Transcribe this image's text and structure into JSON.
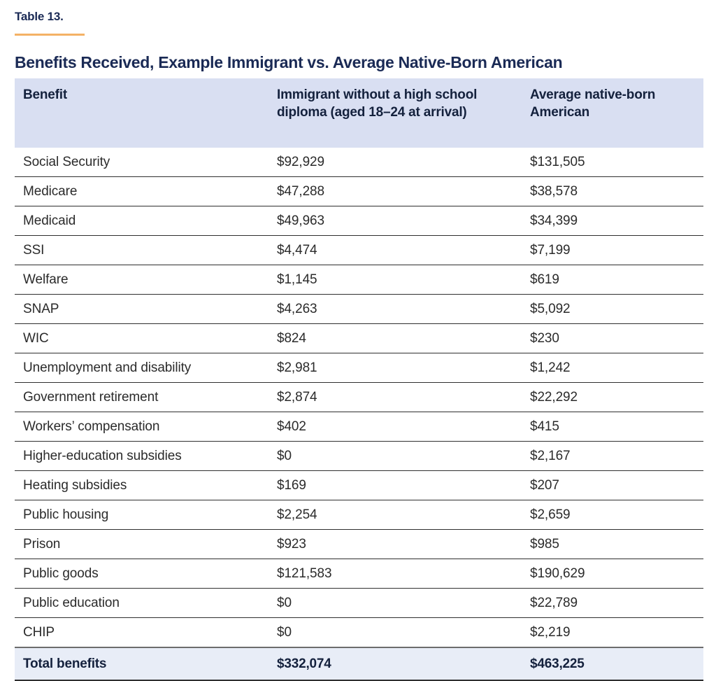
{
  "page": {
    "kicker": "Table 13.",
    "title": "Benefits Received, Example Immigrant vs. Average Native-Born American"
  },
  "colors": {
    "heading_navy": "#1a2a55",
    "kicker_rule_orange": "#f4b266",
    "header_row_bg": "#d9dff2",
    "total_row_bg": "#e8edf7",
    "body_text": "#2b2b2b",
    "row_divider": "#2f2f2f"
  },
  "table": {
    "columns": [
      "Benefit",
      "Immigrant without a high school diploma (aged 18–24 at arrival)",
      "Average native-born American"
    ],
    "rows": [
      {
        "benefit": "Social Security",
        "immigrant": "$92,929",
        "native": "$131,505"
      },
      {
        "benefit": "Medicare",
        "immigrant": "$47,288",
        "native": "$38,578"
      },
      {
        "benefit": "Medicaid",
        "immigrant": "$49,963",
        "native": "$34,399"
      },
      {
        "benefit": "SSI",
        "immigrant": "$4,474",
        "native": "$7,199"
      },
      {
        "benefit": "Welfare",
        "immigrant": "$1,145",
        "native": "$619"
      },
      {
        "benefit": "SNAP",
        "immigrant": "$4,263",
        "native": "$5,092"
      },
      {
        "benefit": "WIC",
        "immigrant": "$824",
        "native": "$230"
      },
      {
        "benefit": "Unemployment and disability",
        "immigrant": "$2,981",
        "native": "$1,242"
      },
      {
        "benefit": "Government retirement",
        "immigrant": "$2,874",
        "native": "$22,292"
      },
      {
        "benefit": "Workers’ compensation",
        "immigrant": "$402",
        "native": "$415"
      },
      {
        "benefit": "Higher-education subsidies",
        "immigrant": "$0",
        "native": "$2,167"
      },
      {
        "benefit": "Heating subsidies",
        "immigrant": "$169",
        "native": "$207"
      },
      {
        "benefit": "Public housing",
        "immigrant": "$2,254",
        "native": "$2,659"
      },
      {
        "benefit": "Prison",
        "immigrant": "$923",
        "native": "$985"
      },
      {
        "benefit": "Public goods",
        "immigrant": "$121,583",
        "native": "$190,629"
      },
      {
        "benefit": "Public education",
        "immigrant": "$0",
        "native": "$22,789"
      },
      {
        "benefit": "CHIP",
        "immigrant": "$0",
        "native": "$2,219"
      }
    ],
    "total": {
      "label": "Total benefits",
      "immigrant": "$332,074",
      "native": "$463,225"
    }
  }
}
